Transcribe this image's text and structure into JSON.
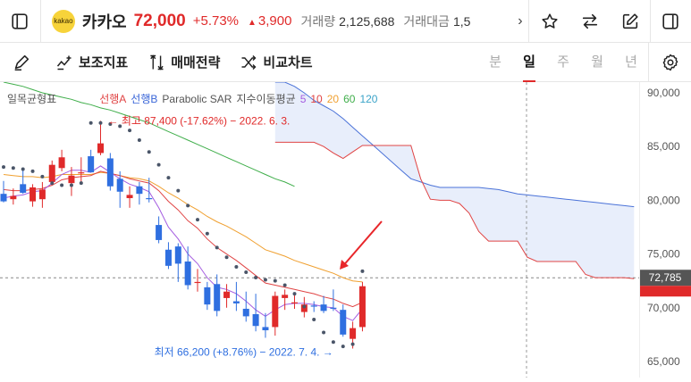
{
  "header": {
    "logo_text": "kakao",
    "name": "카카오",
    "price": "72,000",
    "change_pct": "+5.73%",
    "change_abs": "3,900",
    "volume_label": "거래량",
    "volume": "2,125,688",
    "amount_label": "거래대금",
    "amount": "1,5",
    "colors": {
      "up": "#e02a2a",
      "logo_bg": "#f7d33a"
    }
  },
  "toolbar": {
    "indicators": "보조지표",
    "trading": "매매전략",
    "compare": "비교차트",
    "periods": [
      "분",
      "일",
      "주",
      "월",
      "년"
    ],
    "active_period": "일"
  },
  "legend": {
    "ichimoku": "일목균형표",
    "span_a": "선행A",
    "span_b": "선행B",
    "sar": "Parabolic SAR",
    "ma_title": "지수이동평균",
    "ma": [
      "5",
      "10",
      "20",
      "60",
      "120"
    ],
    "ma_colors": [
      "#a45ce0",
      "#e04444",
      "#f0a030",
      "#3fae4a",
      "#3aa3c8"
    ]
  },
  "chart_data": {
    "type": "candlestick",
    "ylim": [
      63500,
      91000
    ],
    "yticks": [
      90000,
      85000,
      80000,
      75000,
      70000,
      65000
    ],
    "ytick_labels": [
      "90,000",
      "85,000",
      "80,000",
      "75,000",
      "70,000",
      "65,000"
    ],
    "current_price": 72785,
    "current_price_label": "72,785",
    "high_annotation": "최고 87,400 (-17.62%) − 2022. 6. 3.",
    "low_annotation": "최저 66,200 (+8.76%) − 2022. 7. 4.",
    "candles": [
      [
        80600,
        81800,
        79800,
        79900
      ],
      [
        80100,
        81100,
        79600,
        80400
      ],
      [
        81500,
        82800,
        80600,
        80700
      ],
      [
        79900,
        81500,
        79400,
        81200
      ],
      [
        80100,
        81700,
        79300,
        81000
      ],
      [
        81700,
        83700,
        81400,
        83300
      ],
      [
        83000,
        84700,
        82700,
        84000
      ],
      [
        81600,
        83100,
        80400,
        82300
      ],
      [
        82500,
        84000,
        81700,
        82600
      ],
      [
        84100,
        84700,
        82600,
        82600
      ],
      [
        84400,
        87400,
        84200,
        85300
      ],
      [
        83900,
        84400,
        80900,
        81300
      ],
      [
        82000,
        82700,
        79300,
        80800
      ],
      [
        80200,
        81300,
        79300,
        80500
      ],
      [
        81300,
        81700,
        79600,
        80600
      ],
      [
        80200,
        82100,
        79800,
        80100
      ],
      [
        77700,
        78500,
        76000,
        76300
      ],
      [
        75400,
        76100,
        73600,
        73900
      ],
      [
        75700,
        76000,
        72400,
        74100
      ],
      [
        74300,
        75700,
        71700,
        72100
      ],
      [
        72400,
        73600,
        71500,
        72400
      ],
      [
        71900,
        72400,
        69800,
        70300
      ],
      [
        72200,
        73100,
        69200,
        69700
      ],
      [
        70900,
        72200,
        70000,
        71500
      ],
      [
        70600,
        72400,
        69700,
        70400
      ],
      [
        69900,
        71500,
        68700,
        69200
      ],
      [
        69400,
        71300,
        67800,
        68300
      ],
      [
        68200,
        69500,
        67200,
        67900
      ],
      [
        68200,
        71500,
        67400,
        71100
      ],
      [
        70900,
        71700,
        69800,
        71200
      ],
      [
        70400,
        71200,
        69900,
        70500
      ],
      [
        69600,
        71000,
        69100,
        70300
      ],
      [
        70200,
        70600,
        69600,
        70100
      ],
      [
        70300,
        71100,
        69500,
        69700
      ],
      [
        70000,
        71700,
        69700,
        69900
      ],
      [
        69800,
        70300,
        67300,
        67500
      ],
      [
        67100,
        68700,
        66200,
        68100
      ],
      [
        68200,
        72400,
        67800,
        72000
      ]
    ],
    "sar": [
      83100,
      83000,
      82900,
      82700,
      82200,
      81600,
      81400,
      81400,
      81600,
      87200,
      87200,
      87100,
      86900,
      86500,
      85600,
      84500,
      83300,
      82100,
      80900,
      79500,
      78200,
      76900,
      75600,
      74700,
      73800,
      73300,
      72800,
      72600,
      72500,
      72100,
      71300,
      70100,
      68900,
      67700,
      66800,
      66400,
      66600,
      73400
    ],
    "ema5": [
      80200,
      80400,
      80500,
      80800,
      80900,
      81600,
      82400,
      82800,
      82800,
      82600,
      83200,
      82600,
      82000,
      81500,
      81200,
      80800,
      79300,
      77500,
      76400,
      75000,
      74100,
      72800,
      71900,
      71700,
      71300,
      70600,
      69800,
      69200,
      69800,
      70300,
      70400,
      70400,
      70300,
      70100,
      70000,
      69200,
      68800,
      69900
    ],
    "ema10": [
      81000,
      80900,
      80900,
      81000,
      81100,
      81400,
      81900,
      82100,
      82200,
      82300,
      82700,
      82500,
      82300,
      82000,
      81800,
      81600,
      80900,
      79900,
      79100,
      78100,
      77400,
      76400,
      75600,
      75000,
      74400,
      73700,
      73000,
      72300,
      72100,
      71900,
      71700,
      71500,
      71300,
      71000,
      70800,
      70400,
      70100,
      70500
    ],
    "ema20": [
      82400,
      82300,
      82200,
      82200,
      82100,
      82200,
      82400,
      82400,
      82400,
      82400,
      82600,
      82500,
      82300,
      82100,
      82000,
      81800,
      81300,
      80700,
      80200,
      79600,
      79100,
      78500,
      78000,
      77600,
      77100,
      76600,
      76000,
      75400,
      75100,
      74800,
      74400,
      74100,
      73800,
      73500,
      73200,
      72800,
      72500,
      72400
    ],
    "ema60": [
      91000,
      90800,
      90600,
      90300,
      90000,
      89800,
      89600,
      89400,
      89100,
      88900,
      88600,
      88400,
      88100,
      87800,
      87500,
      87200,
      86800,
      86400,
      86000,
      85600,
      85200,
      84800,
      84400,
      84000,
      83600,
      83200,
      82800,
      82400,
      82000,
      81700,
      81300
    ],
    "span_a": [
      null,
      null,
      null,
      null,
      null,
      null,
      null,
      null,
      null,
      null,
      null,
      null,
      null,
      null,
      null,
      null,
      null,
      null,
      null,
      null,
      null,
      null,
      null,
      null,
      null,
      null,
      null,
      null,
      91000,
      91000,
      90600,
      90000,
      89300,
      88800,
      88300,
      87600,
      86800,
      86000,
      85200,
      84400,
      83600,
      82800,
      82000,
      81700,
      81400,
      81200,
      81200,
      81200,
      81200,
      81200,
      81100,
      81000,
      80800,
      80600,
      80500,
      80400,
      80300,
      80200,
      80100,
      80000,
      79900,
      79800,
      79700,
      79600,
      79500,
      79400
    ],
    "span_b": [
      null,
      null,
      null,
      null,
      null,
      null,
      null,
      null,
      null,
      null,
      null,
      null,
      null,
      null,
      null,
      null,
      null,
      null,
      null,
      null,
      null,
      null,
      null,
      null,
      null,
      null,
      null,
      null,
      85400,
      85400,
      85400,
      85400,
      85400,
      85000,
      84400,
      83900,
      84500,
      85100,
      85100,
      85100,
      85100,
      85100,
      85100,
      82000,
      80100,
      80000,
      80000,
      79700,
      78800,
      77100,
      76200,
      76200,
      76200,
      76200,
      74700,
      74300,
      74300,
      74300,
      74300,
      74300,
      73100,
      72800,
      72800,
      72800,
      72800,
      72700
    ]
  }
}
